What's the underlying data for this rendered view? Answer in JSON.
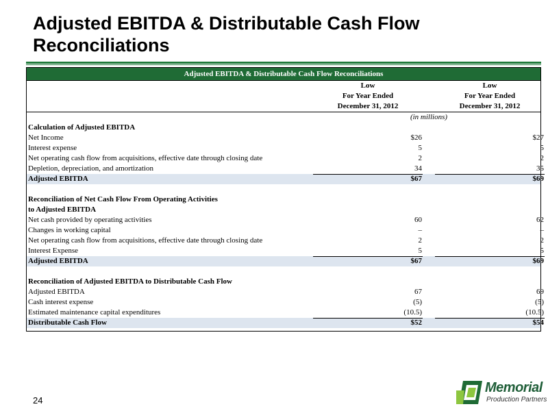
{
  "slide": {
    "title": "Adjusted EBITDA & Distributable Cash Flow Reconciliations",
    "page_number": "24"
  },
  "brand": {
    "name": "Memorial",
    "subtitle": "Production Partners",
    "primary_color": "#1f6b35",
    "accent_color": "#8dc63f",
    "shade_color": "#dde5ef"
  },
  "table": {
    "header": "Adjusted EBITDA & Distributable Cash Flow Reconciliations",
    "col1": {
      "line1": "Low",
      "line2": "For Year Ended",
      "line3": "December 31, 2012"
    },
    "col2": {
      "line1": "Low",
      "line2": "For Year Ended",
      "line3": "December 31, 2012"
    },
    "units_note": "(in millions)",
    "section1": {
      "heading": "Calculation of Adjusted EBITDA",
      "rows": [
        {
          "label": "Net Income",
          "v1": "$26",
          "v2": "$27"
        },
        {
          "label": "Interest expense",
          "v1": "5",
          "v2": "5"
        },
        {
          "label": "Net operating cash flow from acquisitions, effective date through closing date",
          "v1": "2",
          "v2": "2"
        },
        {
          "label": "Depletion, depreciation, and amortization",
          "v1": "34",
          "v2": "35"
        }
      ],
      "total": {
        "label": "Adjusted EBITDA",
        "v1": "$67",
        "v2": "$69"
      }
    },
    "section2": {
      "heading_line1": "Reconciliation of Net Cash Flow From Operating Activities",
      "heading_line2": "to Adjusted EBITDA",
      "rows": [
        {
          "label": "Net cash provided by operating activities",
          "v1": "60",
          "v2": "62"
        },
        {
          "label": "Changes in working capital",
          "v1": "–",
          "v2": "–"
        },
        {
          "label": "Net operating cash flow from acquisitions, effective date through closing date",
          "v1": "2",
          "v2": "2"
        },
        {
          "label": "Interest Expense",
          "v1": "5",
          "v2": "5"
        }
      ],
      "total": {
        "label": "Adjusted EBITDA",
        "v1": "$67",
        "v2": "$69"
      }
    },
    "section3": {
      "heading": "Reconciliation of Adjusted EBITDA to Distributable Cash Flow",
      "rows": [
        {
          "label": "Adjusted EBITDA",
          "v1": "67",
          "v2": "69"
        },
        {
          "label": "Cash interest expense",
          "v1": "(5)",
          "v2": "(5)"
        },
        {
          "label": "Estimated maintenance capital expenditures",
          "v1": "(10.5)",
          "v2": "(10.5)"
        }
      ],
      "total": {
        "label": "Distributable Cash Flow",
        "v1": "$52",
        "v2": "$54"
      }
    }
  }
}
